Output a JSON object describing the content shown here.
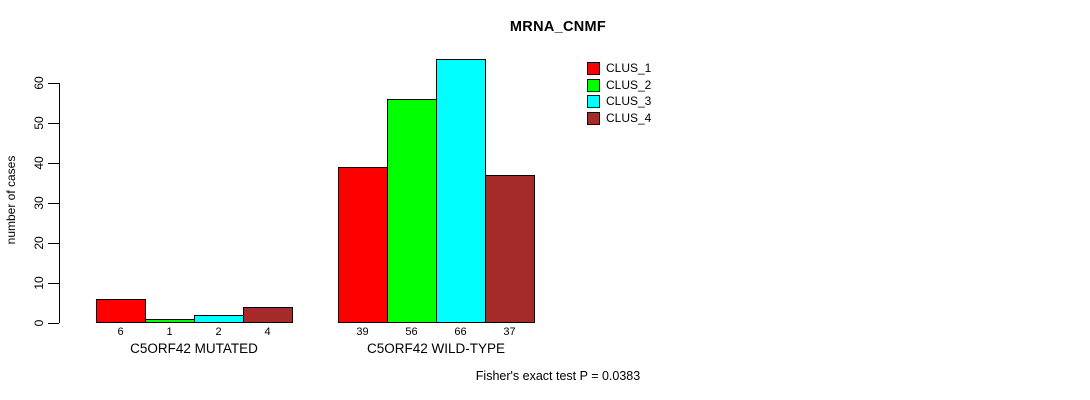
{
  "chart_data": {
    "type": "bar",
    "title": "MRNA_CNMF",
    "categories": [
      "C5ORF42 MUTATED",
      "C5ORF42 WILD-TYPE"
    ],
    "series": [
      {
        "name": "CLUS_1",
        "color": "#FF0000",
        "values": [
          6,
          39
        ]
      },
      {
        "name": "CLUS_2",
        "color": "#00FF00",
        "values": [
          1,
          56
        ]
      },
      {
        "name": "CLUS_3",
        "color": "#00FFFF",
        "values": [
          2,
          66
        ]
      },
      {
        "name": "CLUS_4",
        "color": "#A52A2A",
        "values": [
          4,
          37
        ]
      }
    ],
    "xlabel": "",
    "ylabel": "number of cases",
    "ylim": [
      0,
      66
    ],
    "yticks": [
      0,
      10,
      20,
      30,
      40,
      50,
      60
    ],
    "bar_value_labels": true,
    "grid": false,
    "legend_position": "top-right",
    "footnote": "Fisher's exact test P = 0.0383"
  }
}
